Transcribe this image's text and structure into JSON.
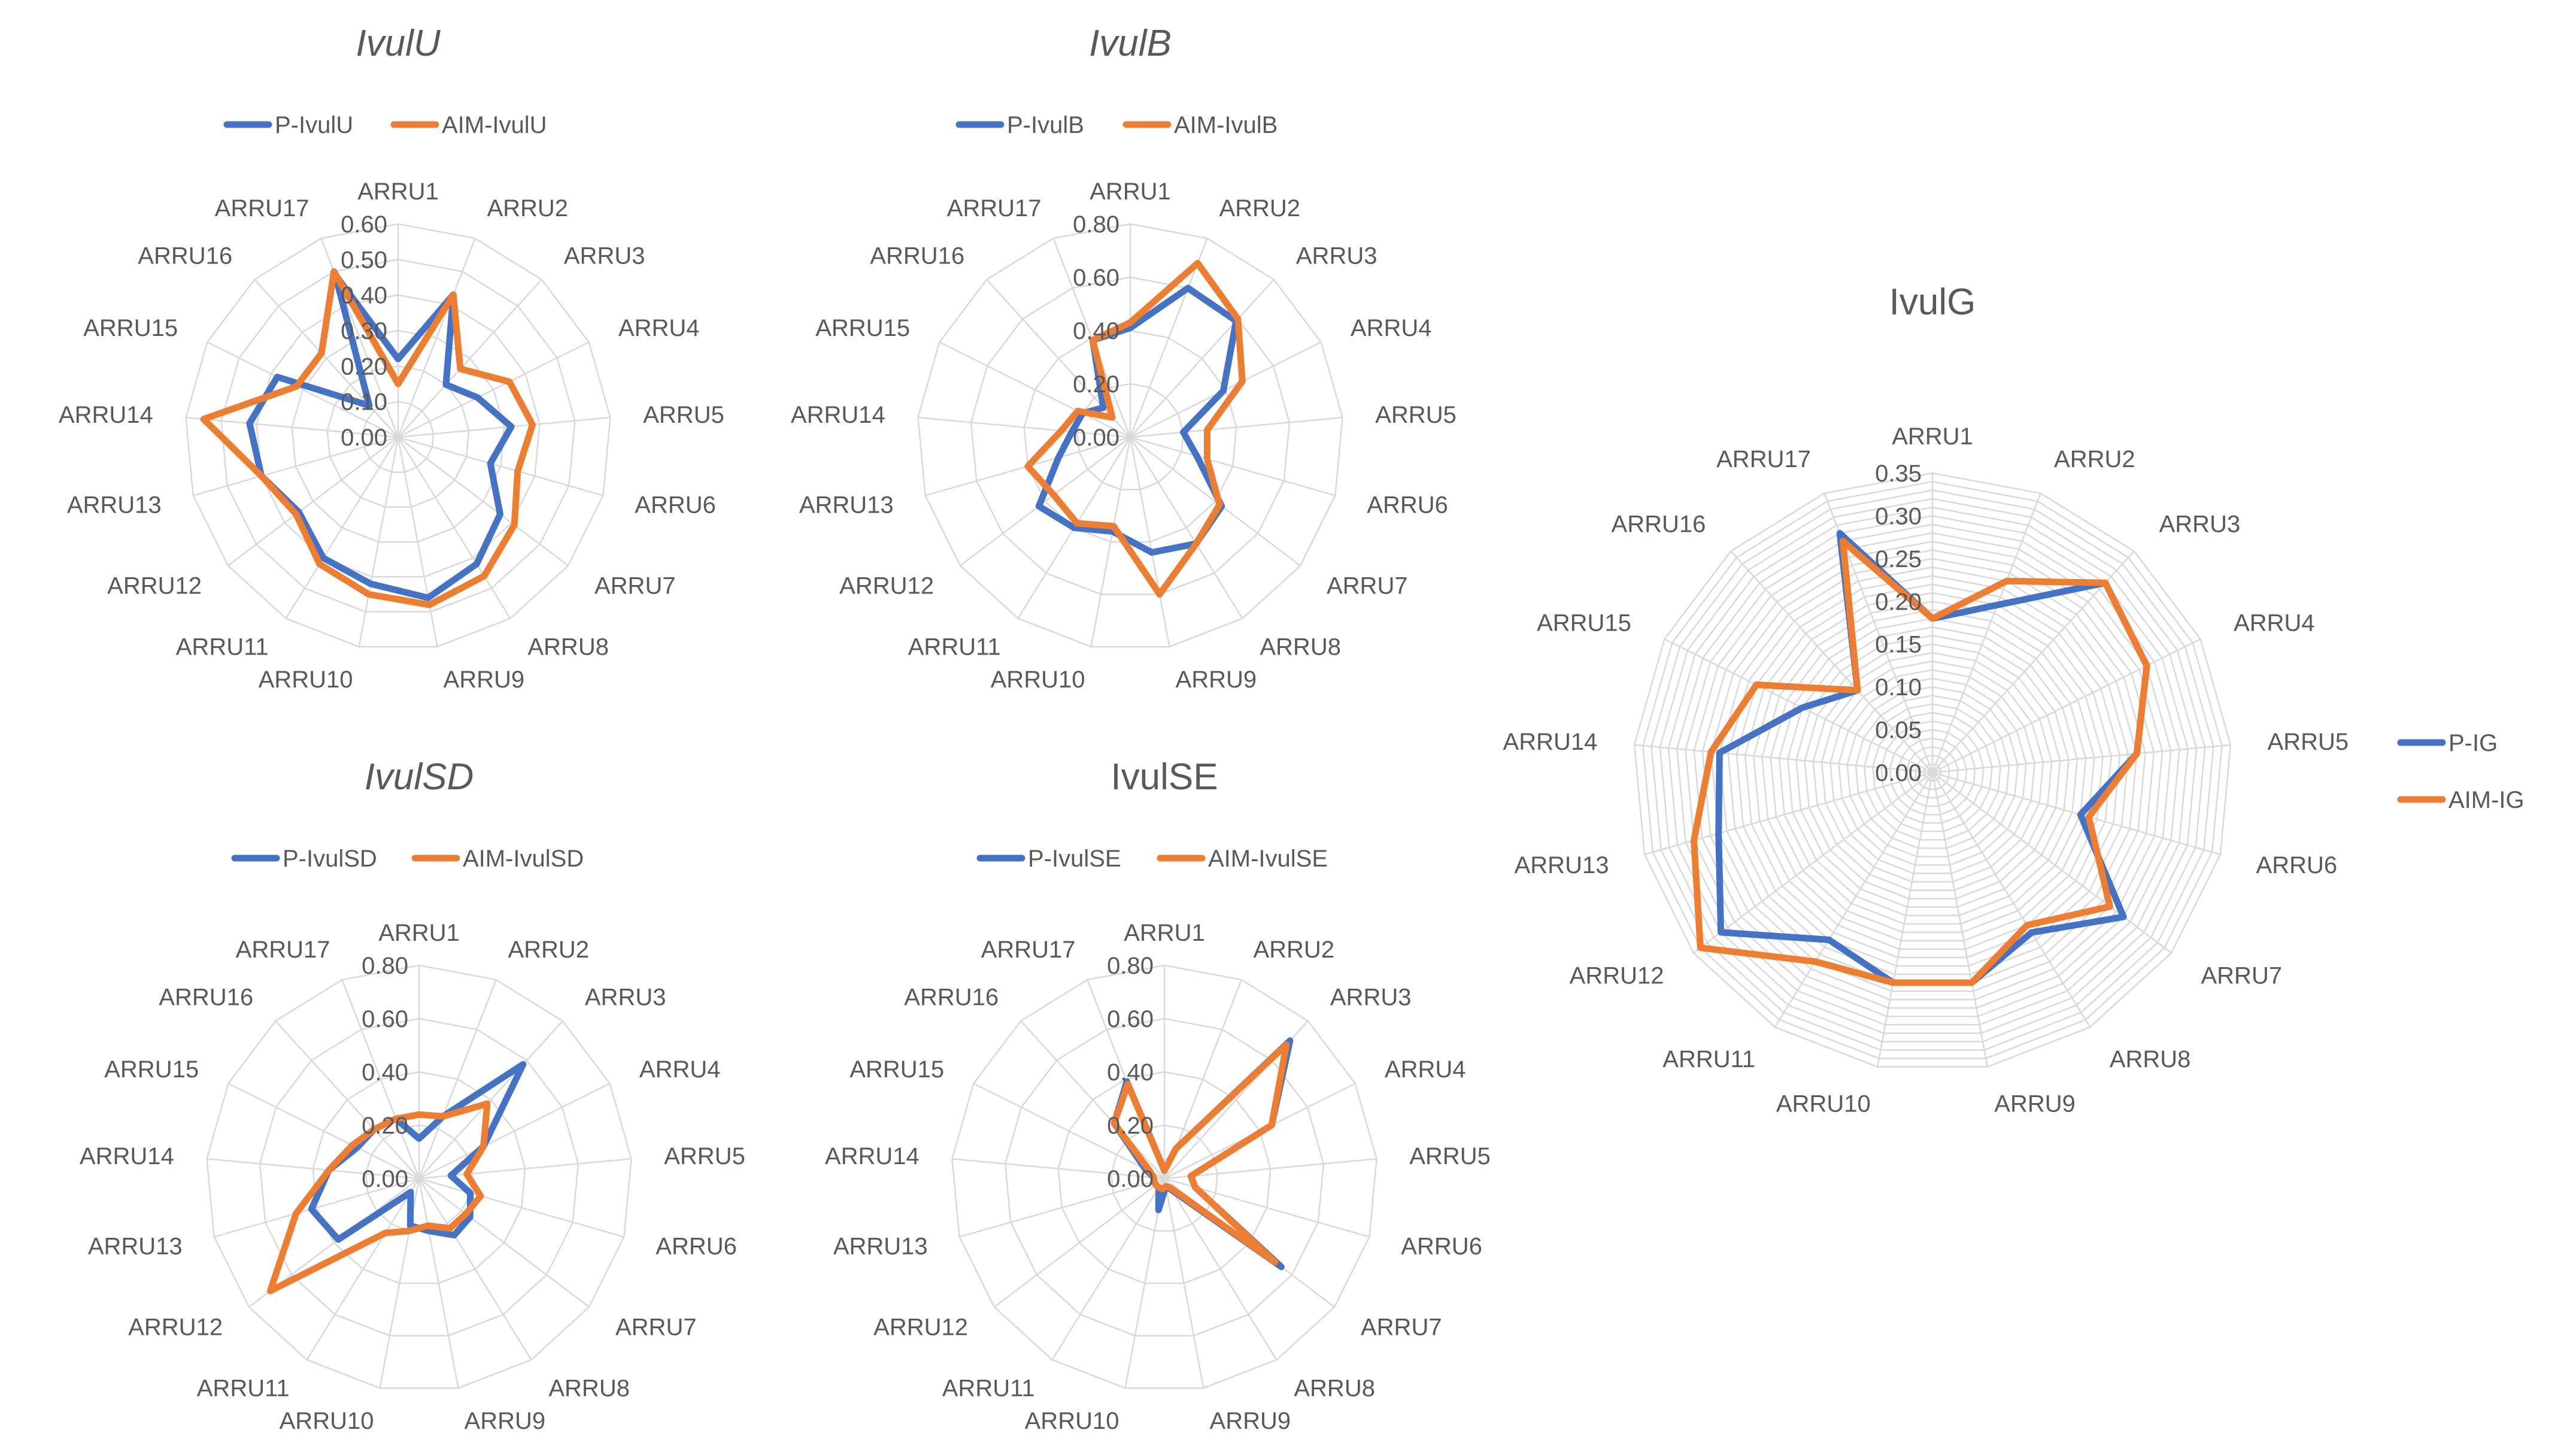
{
  "chart_data": [
    {
      "type": "radar",
      "title": "IvulU",
      "title_italic": true,
      "categories": [
        "ARRU1",
        "ARRU2",
        "ARRU3",
        "ARRU4",
        "ARRU5",
        "ARRU6",
        "ARRU7",
        "ARRU8",
        "ARRU9",
        "ARRU10",
        "ARRU11",
        "ARRU12",
        "ARRU13",
        "ARRU14",
        "ARRU15",
        "ARRU16",
        "ARRU17"
      ],
      "ticks": [
        "0.00",
        "0.10",
        "0.20",
        "0.30",
        "0.40",
        "0.50",
        "0.60"
      ],
      "rmax": 0.6,
      "grid_rings": 6,
      "legend_position": "top",
      "series": [
        {
          "name": "P-IvulU",
          "color": "#4472C4",
          "values": [
            0.22,
            0.43,
            0.2,
            0.25,
            0.32,
            0.27,
            0.36,
            0.42,
            0.46,
            0.42,
            0.4,
            0.35,
            0.4,
            0.42,
            0.38,
            0.12,
            0.49
          ]
        },
        {
          "name": "AIM-IvulU",
          "color": "#ED7D31",
          "values": [
            0.15,
            0.43,
            0.26,
            0.35,
            0.38,
            0.35,
            0.41,
            0.46,
            0.48,
            0.45,
            0.42,
            0.36,
            0.4,
            0.55,
            0.32,
            0.32,
            0.5
          ]
        }
      ]
    },
    {
      "type": "radar",
      "title": "IvulB",
      "title_italic": true,
      "categories": [
        "ARRU1",
        "ARRU2",
        "ARRU3",
        "ARRU4",
        "ARRU5",
        "ARRU6",
        "ARRU7",
        "ARRU8",
        "ARRU9",
        "ARRU10",
        "ARRU11",
        "ARRU12",
        "ARRU13",
        "ARRU14",
        "ARRU15",
        "ARRU16",
        "ARRU17"
      ],
      "ticks": [
        "0.00",
        "0.20",
        "0.40",
        "0.60",
        "0.80"
      ],
      "rmax": 0.8,
      "grid_rings": 4,
      "legend_position": "top",
      "series": [
        {
          "name": "P-IvulB",
          "color": "#4472C4",
          "values": [
            0.41,
            0.6,
            0.59,
            0.39,
            0.2,
            0.26,
            0.43,
            0.47,
            0.44,
            0.36,
            0.4,
            0.43,
            0.28,
            0.22,
            0.2,
            0.15,
            0.39
          ]
        },
        {
          "name": "AIM-IvulB",
          "color": "#ED7D31",
          "values": [
            0.43,
            0.7,
            0.6,
            0.47,
            0.29,
            0.3,
            0.42,
            0.47,
            0.6,
            0.34,
            0.38,
            0.36,
            0.4,
            0.26,
            0.22,
            0.1,
            0.39
          ]
        }
      ]
    },
    {
      "type": "radar",
      "title": "IvulSD",
      "title_italic": true,
      "categories": [
        "ARRU1",
        "ARRU2",
        "ARRU3",
        "ARRU4",
        "ARRU5",
        "ARRU6",
        "ARRU7",
        "ARRU8",
        "ARRU9",
        "ARRU10",
        "ARRU11",
        "ARRU12",
        "ARRU13",
        "ARRU14",
        "ARRU15",
        "ARRU16",
        "ARRU17"
      ],
      "ticks": [
        "0.00",
        "0.20",
        "0.40",
        "0.60",
        "0.80"
      ],
      "rmax": 0.8,
      "grid_rings": 4,
      "legend_position": "top",
      "series": [
        {
          "name": "P-IvulSD",
          "color": "#4472C4",
          "values": [
            0.15,
            0.25,
            0.58,
            0.27,
            0.12,
            0.2,
            0.24,
            0.25,
            0.2,
            0.18,
            0.06,
            0.38,
            0.42,
            0.34,
            0.26,
            0.25,
            0.24
          ]
        },
        {
          "name": "AIM-IvulSD",
          "color": "#ED7D31",
          "values": [
            0.24,
            0.25,
            0.38,
            0.27,
            0.18,
            0.24,
            0.22,
            0.22,
            0.18,
            0.2,
            0.24,
            0.7,
            0.48,
            0.34,
            0.28,
            0.25,
            0.24
          ]
        }
      ]
    },
    {
      "type": "radar",
      "title": "IvulSE",
      "title_italic": false,
      "categories": [
        "ARRU1",
        "ARRU2",
        "ARRU3",
        "ARRU4",
        "ARRU5",
        "ARRU6",
        "ARRU7",
        "ARRU8",
        "ARRU9",
        "ARRU10",
        "ARRU11",
        "ARRU12",
        "ARRU13",
        "ARRU14",
        "ARRU15",
        "ARRU16",
        "ARRU17"
      ],
      "ticks": [
        "0.00",
        "0.20",
        "0.40",
        "0.60",
        "0.80"
      ],
      "rmax": 0.8,
      "grid_rings": 4,
      "legend_position": "top",
      "series": [
        {
          "name": "P-IvulSE",
          "color": "#4472C4",
          "values": [
            0.03,
            0.12,
            0.7,
            0.45,
            0.1,
            0.12,
            0.55,
            0.05,
            0.03,
            0.12,
            0.04,
            0.04,
            0.04,
            0.04,
            0.08,
            0.28,
            0.39
          ]
        },
        {
          "name": "AIM-IvulSE",
          "color": "#ED7D31",
          "values": [
            0.03,
            0.12,
            0.68,
            0.45,
            0.1,
            0.12,
            0.52,
            0.04,
            0.03,
            0.04,
            0.04,
            0.04,
            0.04,
            0.04,
            0.06,
            0.28,
            0.38
          ]
        }
      ]
    },
    {
      "type": "radar",
      "title": "IvulG",
      "title_italic": false,
      "categories": [
        "ARRU1",
        "ARRU2",
        "ARRU3",
        "ARRU4",
        "ARRU5",
        "ARRU6",
        "ARRU7",
        "ARRU8",
        "ARRU9",
        "ARRU10",
        "ARRU11",
        "ARRU12",
        "ARRU13",
        "ARRU14",
        "ARRU15",
        "ARRU16",
        "ARRU17"
      ],
      "ticks": [
        "0.00",
        "0.05",
        "0.10",
        "0.15",
        "0.20",
        "0.25",
        "0.30",
        "0.35"
      ],
      "rmax": 0.35,
      "grid_rings": 35,
      "legend_position": "right",
      "series": [
        {
          "name": "P-IG",
          "color": "#4472C4",
          "values": [
            0.18,
            0.21,
            0.3,
            0.28,
            0.24,
            0.18,
            0.28,
            0.22,
            0.25,
            0.25,
            0.23,
            0.31,
            0.26,
            0.25,
            0.17,
            0.13,
            0.3
          ]
        },
        {
          "name": "AIM-IG",
          "color": "#ED7D31",
          "values": [
            0.18,
            0.24,
            0.3,
            0.28,
            0.24,
            0.19,
            0.26,
            0.21,
            0.25,
            0.25,
            0.26,
            0.34,
            0.29,
            0.26,
            0.23,
            0.13,
            0.29
          ]
        }
      ]
    }
  ]
}
